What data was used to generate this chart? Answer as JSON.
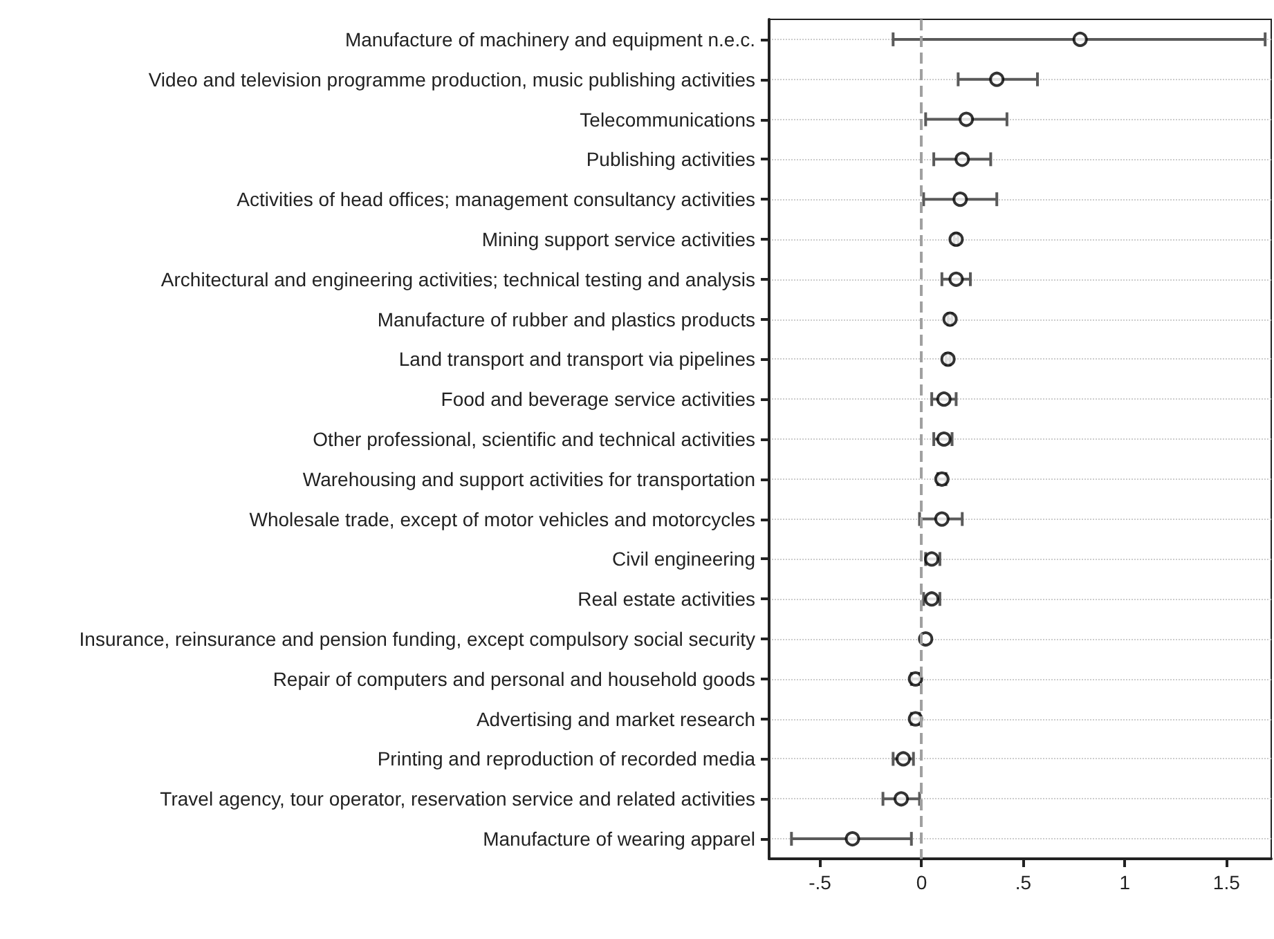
{
  "chart_data": {
    "type": "scatter",
    "orientation": "horizontal",
    "categories": [
      "Manufacture of machinery and equipment n.e.c.",
      "Video and television programme production, music publishing activities",
      "Telecommunications",
      "Publishing activities",
      "Activities of head offices; management consultancy activities",
      "Mining support service activities",
      "Architectural and engineering activities; technical testing and analysis",
      "Manufacture of rubber and plastics products",
      "Land transport and transport via pipelines",
      "Food and beverage service activities",
      "Other professional, scientific and technical activities",
      "Warehousing and support activities for transportation",
      "Wholesale trade, except of motor vehicles and motorcycles",
      "Civil engineering",
      "Real estate activities",
      "Insurance, reinsurance and pension funding, except compulsory social security",
      "Repair of computers and personal and household goods",
      "Advertising and market research",
      "Printing and reproduction of recorded media",
      "Travel agency, tour operator, reservation service and related activities",
      "Manufacture of wearing apparel"
    ],
    "series": [
      {
        "color": "#000000",
        "values": [
          0.78,
          0.37,
          0.22,
          0.2,
          0.19,
          0.17,
          0.17,
          0.14,
          0.13,
          0.11,
          0.11,
          0.1,
          0.1,
          0.05,
          0.05,
          0.02,
          -0.03,
          -0.03,
          -0.09,
          -0.1,
          -0.34
        ],
        "errors": [
          [
            -0.14,
            1.69
          ],
          [
            0.18,
            0.57
          ],
          [
            0.02,
            0.42
          ],
          [
            0.06,
            0.34
          ],
          [
            0.01,
            0.37
          ],
          [
            0.16,
            0.18
          ],
          [
            0.1,
            0.24
          ],
          [
            0.13,
            0.15
          ],
          [
            0.12,
            0.14
          ],
          [
            0.05,
            0.17
          ],
          [
            0.06,
            0.15
          ],
          [
            0.08,
            0.12
          ],
          [
            -0.01,
            0.2
          ],
          [
            0.02,
            0.09
          ],
          [
            0.01,
            0.09
          ],
          null,
          [
            -0.05,
            -0.01
          ],
          [
            -0.05,
            -0.01
          ],
          [
            -0.14,
            -0.04
          ],
          [
            -0.19,
            -0.01
          ],
          [
            -0.64,
            -0.05
          ]
        ]
      }
    ],
    "xlim": [
      -0.75,
      1.72
    ],
    "xticks": [
      {
        "value": -0.5,
        "label": "-.5"
      },
      0,
      {
        "value": 0.5,
        "label": ".5"
      },
      1,
      {
        "value": 1.5,
        "label": "1.5"
      }
    ],
    "ref_lines": [
      {
        "axis": "x",
        "value": 0,
        "color": "#a0a0a0",
        "line_style": "dashed"
      }
    ],
    "grid": "y",
    "marker": "circle"
  }
}
